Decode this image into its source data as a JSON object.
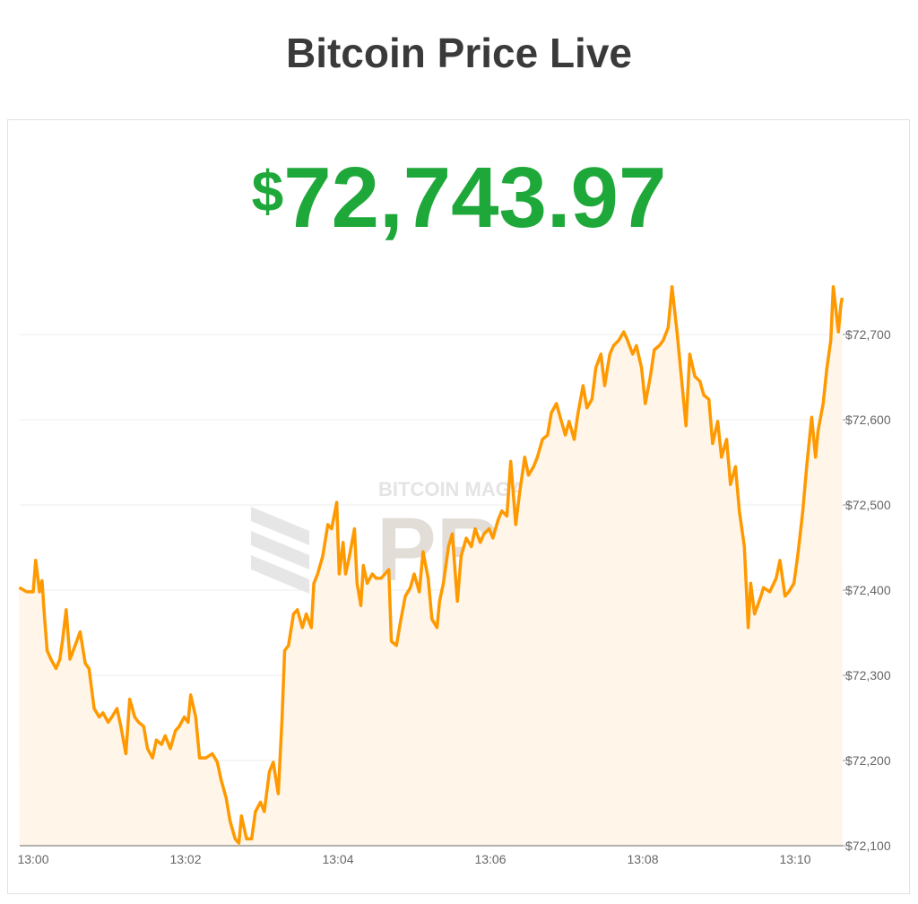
{
  "title": "Bitcoin Price Live",
  "price": {
    "currency": "$",
    "value": "72,743.97"
  },
  "colors": {
    "price": "#1fa83a",
    "line": "#ff9900",
    "fill": "#fff5e8",
    "title": "#3a3a3a"
  },
  "watermark": {
    "line1": "BITCOIN MAGAZINE",
    "line2": "PRO"
  },
  "chart_data": {
    "type": "area",
    "title": "",
    "xlabel": "",
    "ylabel": "",
    "ylim": [
      72100,
      72760
    ],
    "xlim": [
      "12:59:49",
      "13:10:37"
    ],
    "grid": true,
    "y_axis_side": "right",
    "xticks": [
      "13:00",
      "13:02",
      "13:04",
      "13:06",
      "13:08",
      "13:10"
    ],
    "yticks": [
      72100,
      72200,
      72300,
      72400,
      72500,
      72600,
      72700
    ],
    "ytick_labels": [
      "$72,100",
      "$72,200",
      "$72,300",
      "$72,400",
      "$72,500",
      "$72,600",
      "$72,700"
    ],
    "points": [
      [
        "12:59:49",
        72403
      ],
      [
        "12:59:55",
        72398
      ],
      [
        "13:00:00",
        72398
      ],
      [
        "13:00:02",
        72435
      ],
      [
        "13:00:05",
        72398
      ],
      [
        "13:00:07",
        72411
      ],
      [
        "13:00:09",
        72366
      ],
      [
        "13:00:11",
        72329
      ],
      [
        "13:00:14",
        72319
      ],
      [
        "13:00:18",
        72308
      ],
      [
        "13:00:21",
        72319
      ],
      [
        "13:00:23",
        72340
      ],
      [
        "13:00:26",
        72377
      ],
      [
        "13:00:29",
        72319
      ],
      [
        "13:00:33",
        72335
      ],
      [
        "13:00:37",
        72351
      ],
      [
        "13:00:41",
        72314
      ],
      [
        "13:00:44",
        72308
      ],
      [
        "13:00:48",
        72261
      ],
      [
        "13:00:52",
        72251
      ],
      [
        "13:00:55",
        72256
      ],
      [
        "13:00:59",
        72245
      ],
      [
        "13:01:02",
        72251
      ],
      [
        "13:01:06",
        72261
      ],
      [
        "13:01:09",
        72240
      ],
      [
        "13:01:13",
        72208
      ],
      [
        "13:01:16",
        72272
      ],
      [
        "13:01:20",
        72251
      ],
      [
        "13:01:23",
        72245
      ],
      [
        "13:01:27",
        72240
      ],
      [
        "13:01:30",
        72214
      ],
      [
        "13:01:34",
        72203
      ],
      [
        "13:01:37",
        72224
      ],
      [
        "13:01:41",
        72219
      ],
      [
        "13:01:44",
        72229
      ],
      [
        "13:01:48",
        72214
      ],
      [
        "13:01:52",
        72235
      ],
      [
        "13:01:55",
        72240
      ],
      [
        "13:01:59",
        72251
      ],
      [
        "13:02:02",
        72245
      ],
      [
        "13:02:04",
        72277
      ],
      [
        "13:02:08",
        72251
      ],
      [
        "13:02:11",
        72203
      ],
      [
        "13:02:16",
        72203
      ],
      [
        "13:02:21",
        72208
      ],
      [
        "13:02:25",
        72198
      ],
      [
        "13:02:28",
        72177
      ],
      [
        "13:02:32",
        72156
      ],
      [
        "13:02:35",
        72129
      ],
      [
        "13:02:39",
        72108
      ],
      [
        "13:02:42",
        72103
      ],
      [
        "13:02:44",
        72135
      ],
      [
        "13:02:48",
        72108
      ],
      [
        "13:02:52",
        72108
      ],
      [
        "13:02:55",
        72140
      ],
      [
        "13:02:59",
        72151
      ],
      [
        "13:03:02",
        72140
      ],
      [
        "13:03:06",
        72187
      ],
      [
        "13:03:09",
        72198
      ],
      [
        "13:03:13",
        72161
      ],
      [
        "13:03:16",
        72251
      ],
      [
        "13:03:18",
        72329
      ],
      [
        "13:03:21",
        72335
      ],
      [
        "13:03:25",
        72372
      ],
      [
        "13:03:28",
        72377
      ],
      [
        "13:03:32",
        72356
      ],
      [
        "13:03:35",
        72372
      ],
      [
        "13:03:39",
        72356
      ],
      [
        "13:03:41",
        72408
      ],
      [
        "13:03:44",
        72419
      ],
      [
        "13:03:48",
        72440
      ],
      [
        "13:03:52",
        72477
      ],
      [
        "13:03:55",
        72472
      ],
      [
        "13:03:59",
        72503
      ],
      [
        "13:04:01",
        72419
      ],
      [
        "13:04:04",
        72456
      ],
      [
        "13:04:06",
        72419
      ],
      [
        "13:04:09",
        72440
      ],
      [
        "13:04:13",
        72472
      ],
      [
        "13:04:15",
        72408
      ],
      [
        "13:04:18",
        72382
      ],
      [
        "13:04:20",
        72429
      ],
      [
        "13:04:23",
        72408
      ],
      [
        "13:04:27",
        72419
      ],
      [
        "13:04:30",
        72414
      ],
      [
        "13:04:34",
        72414
      ],
      [
        "13:04:37",
        72419
      ],
      [
        "13:04:40",
        72424
      ],
      [
        "13:04:42",
        72340
      ],
      [
        "13:04:46",
        72335
      ],
      [
        "13:04:49",
        72361
      ],
      [
        "13:04:53",
        72393
      ],
      [
        "13:04:57",
        72403
      ],
      [
        "13:05:00",
        72419
      ],
      [
        "13:05:04",
        72398
      ],
      [
        "13:05:07",
        72445
      ],
      [
        "13:05:11",
        72414
      ],
      [
        "13:05:14",
        72366
      ],
      [
        "13:05:18",
        72356
      ],
      [
        "13:05:20",
        72387
      ],
      [
        "13:05:23",
        72408
      ],
      [
        "13:05:27",
        72451
      ],
      [
        "13:05:30",
        72466
      ],
      [
        "13:05:34",
        72387
      ],
      [
        "13:05:37",
        72440
      ],
      [
        "13:05:41",
        72461
      ],
      [
        "13:05:45",
        72451
      ],
      [
        "13:05:48",
        72472
      ],
      [
        "13:05:52",
        72456
      ],
      [
        "13:05:55",
        72466
      ],
      [
        "13:05:59",
        72472
      ],
      [
        "13:06:02",
        72461
      ],
      [
        "13:06:06",
        72482
      ],
      [
        "13:06:09",
        72493
      ],
      [
        "13:06:13",
        72487
      ],
      [
        "13:06:16",
        72551
      ],
      [
        "13:06:20",
        72477
      ],
      [
        "13:06:23",
        72514
      ],
      [
        "13:06:27",
        72556
      ],
      [
        "13:06:30",
        72535
      ],
      [
        "13:06:34",
        72545
      ],
      [
        "13:06:37",
        72556
      ],
      [
        "13:06:41",
        72577
      ],
      [
        "13:06:45",
        72582
      ],
      [
        "13:06:48",
        72608
      ],
      [
        "13:06:52",
        72619
      ],
      [
        "13:06:55",
        72603
      ],
      [
        "13:06:59",
        72582
      ],
      [
        "13:07:02",
        72598
      ],
      [
        "13:07:06",
        72577
      ],
      [
        "13:07:09",
        72608
      ],
      [
        "13:07:13",
        72640
      ],
      [
        "13:07:16",
        72614
      ],
      [
        "13:07:20",
        72624
      ],
      [
        "13:07:23",
        72661
      ],
      [
        "13:07:27",
        72677
      ],
      [
        "13:07:30",
        72640
      ],
      [
        "13:07:34",
        72677
      ],
      [
        "13:07:37",
        72687
      ],
      [
        "13:07:41",
        72693
      ],
      [
        "13:07:45",
        72703
      ],
      [
        "13:07:48",
        72693
      ],
      [
        "13:07:52",
        72677
      ],
      [
        "13:07:55",
        72687
      ],
      [
        "13:07:59",
        72661
      ],
      [
        "13:08:02",
        72619
      ],
      [
        "13:08:06",
        72651
      ],
      [
        "13:08:09",
        72682
      ],
      [
        "13:08:13",
        72687
      ],
      [
        "13:08:16",
        72693
      ],
      [
        "13:08:20",
        72708
      ],
      [
        "13:08:23",
        72756
      ],
      [
        "13:08:27",
        72703
      ],
      [
        "13:08:30",
        72656
      ],
      [
        "13:08:34",
        72593
      ],
      [
        "13:08:37",
        72677
      ],
      [
        "13:08:41",
        72651
      ],
      [
        "13:08:45",
        72645
      ],
      [
        "13:08:48",
        72629
      ],
      [
        "13:08:52",
        72624
      ],
      [
        "13:08:55",
        72572
      ],
      [
        "13:08:59",
        72598
      ],
      [
        "13:09:02",
        72556
      ],
      [
        "13:09:06",
        72577
      ],
      [
        "13:09:09",
        72524
      ],
      [
        "13:09:13",
        72545
      ],
      [
        "13:09:16",
        72493
      ],
      [
        "13:09:20",
        72451
      ],
      [
        "13:09:23",
        72356
      ],
      [
        "13:09:25",
        72408
      ],
      [
        "13:09:28",
        72372
      ],
      [
        "13:09:33",
        72393
      ],
      [
        "13:09:35",
        72403
      ],
      [
        "13:09:40",
        72398
      ],
      [
        "13:09:45",
        72414
      ],
      [
        "13:09:48",
        72435
      ],
      [
        "13:09:52",
        72393
      ],
      [
        "13:09:55",
        72398
      ],
      [
        "13:09:59",
        72408
      ],
      [
        "13:10:02",
        72440
      ],
      [
        "13:10:06",
        72493
      ],
      [
        "13:10:09",
        72545
      ],
      [
        "13:10:13",
        72603
      ],
      [
        "13:10:16",
        72556
      ],
      [
        "13:10:18",
        72587
      ],
      [
        "13:10:22",
        72619
      ],
      [
        "13:10:25",
        72661
      ],
      [
        "13:10:28",
        72693
      ],
      [
        "13:10:30",
        72756
      ],
      [
        "13:10:34",
        72703
      ],
      [
        "13:10:36",
        72735
      ],
      [
        "13:10:37",
        72743
      ]
    ]
  }
}
